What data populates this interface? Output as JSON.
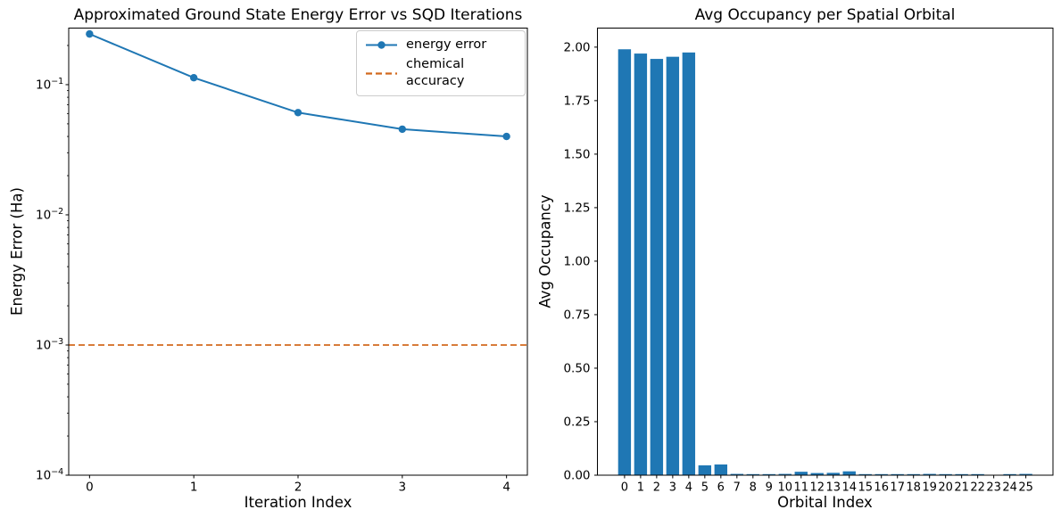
{
  "figure": {
    "background": "#ffffff",
    "text_color": "#000000",
    "spine_color": "#000000"
  },
  "chart_data": [
    {
      "type": "line",
      "title": "Approximated Ground State Energy Error vs SQD Iterations",
      "xlabel": "Iteration Index",
      "ylabel": "Energy Error (Ha)",
      "yscale": "log",
      "x": [
        0,
        1,
        2,
        3,
        4
      ],
      "series": [
        {
          "name": "energy error",
          "values": [
            0.245,
            0.113,
            0.061,
            0.0455,
            0.04
          ],
          "color": "#1f77b4",
          "marker": "circle",
          "linestyle": "solid"
        }
      ],
      "hline": {
        "name": "chemical accuracy",
        "value": 0.001,
        "color": "#d2691e",
        "linestyle": "dashed"
      },
      "xlim": [
        -0.2,
        4.2
      ],
      "ylim": [
        0.0001,
        0.272
      ],
      "xticks": [
        "0",
        "1",
        "2",
        "3",
        "4"
      ],
      "ytick_exponents": [
        -1,
        -2,
        -3,
        -4
      ],
      "grid": false,
      "legend": {
        "position": "upper right",
        "entries": [
          "energy error",
          "chemical accuracy"
        ]
      }
    },
    {
      "type": "bar",
      "title": "Avg Occupancy per Spatial Orbital",
      "xlabel": "Orbital Index",
      "ylabel": "Avg Occupancy",
      "categories": [
        "0",
        "1",
        "2",
        "3",
        "4",
        "5",
        "6",
        "7",
        "8",
        "9",
        "10",
        "11",
        "12",
        "13",
        "14",
        "15",
        "16",
        "17",
        "18",
        "19",
        "20",
        "21",
        "22",
        "23",
        "24",
        "25"
      ],
      "values": [
        1.99,
        1.97,
        1.945,
        1.955,
        1.975,
        0.046,
        0.05,
        0.006,
        0.005,
        0.005,
        0.006,
        0.016,
        0.01,
        0.011,
        0.018,
        0.005,
        0.005,
        0.005,
        0.005,
        0.006,
        0.005,
        0.005,
        0.005,
        0.0,
        0.005,
        0.006
      ],
      "bar_color": "#1f77b4",
      "bar_width": 0.8,
      "xlim": [
        -1.69,
        26.69
      ],
      "ylim": [
        0,
        2.089
      ],
      "yticks": [
        0.0,
        0.25,
        0.5,
        0.75,
        1.0,
        1.25,
        1.5,
        1.75,
        2.0
      ],
      "grid": false
    }
  ]
}
